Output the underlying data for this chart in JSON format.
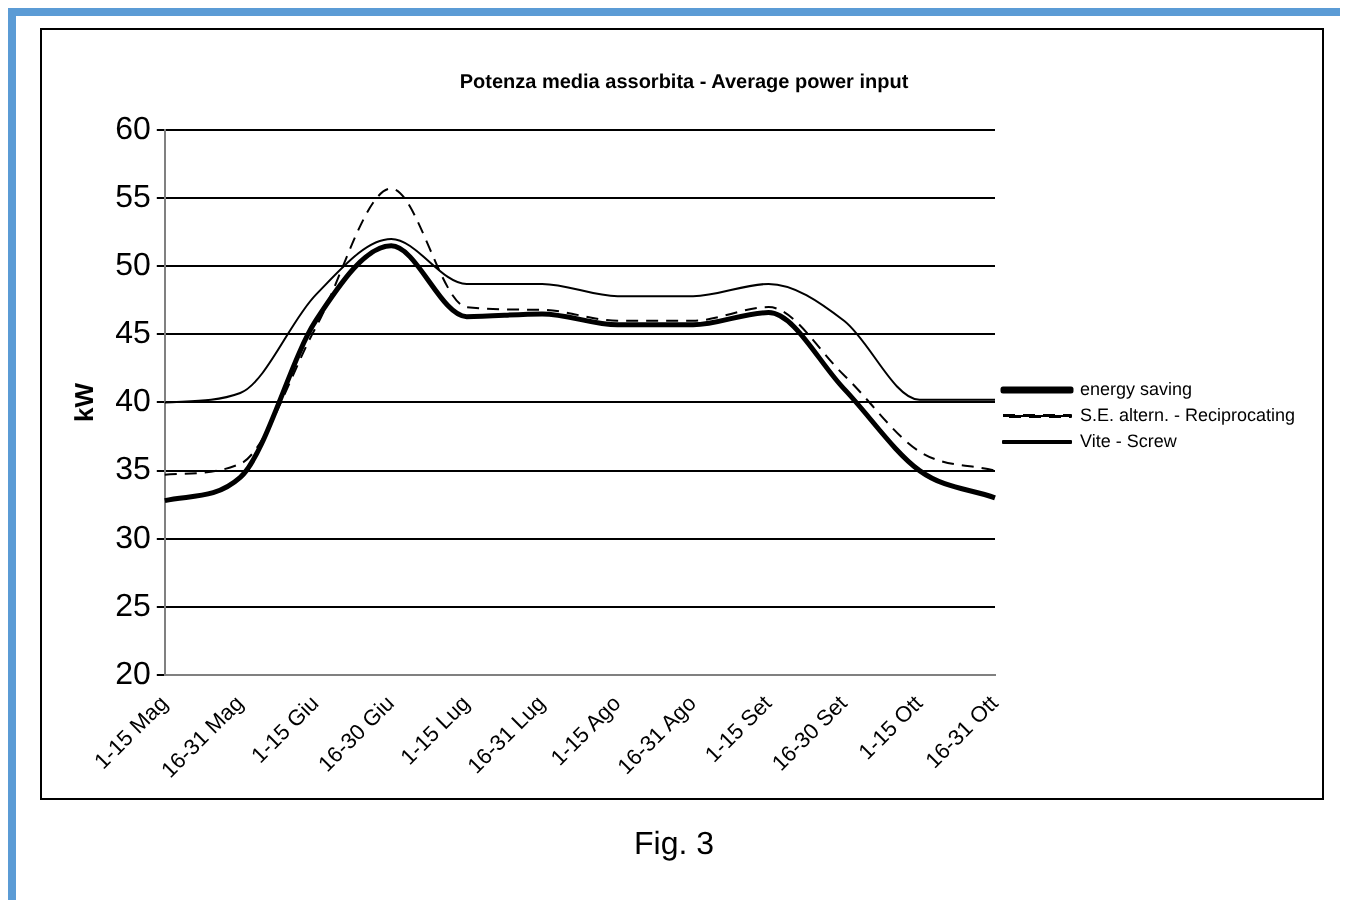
{
  "chart_data": {
    "type": "line",
    "title": "Potenza media assorbita - Average power input",
    "ylabel": "kW",
    "categories": [
      "1-15 Mag",
      "16-31 Mag",
      "1-15 Giu",
      "16-30 Giu",
      "1-15 Lug",
      "16-31 Lug",
      "1-15 Ago",
      "16-31 Ago",
      "1-15 Set",
      "16-30 Set",
      "1-15 Ott",
      "16-31 Ott"
    ],
    "series": [
      {
        "name": "energy saving",
        "color": "#000000",
        "line_style": "solid",
        "values": [
          32.8,
          34.5,
          46,
          51.5,
          46.3,
          46.5,
          45.7,
          45.7,
          46.6,
          41,
          35,
          33
        ]
      },
      {
        "name": "S.E. altern. - Reciprocating",
        "color": "#000000",
        "line_style": "dashed",
        "values": [
          34.7,
          35.5,
          45.5,
          55.7,
          47,
          46.8,
          46,
          46,
          47,
          42,
          36.4,
          35
        ]
      },
      {
        "name": "Vite - Screw",
        "color": "#000000",
        "line_style": "solid",
        "values": [
          40,
          40.7,
          47.9,
          52,
          48.7,
          48.7,
          47.8,
          47.8,
          48.7,
          46,
          40.2,
          40.2
        ]
      }
    ],
    "ylim": [
      20,
      60
    ],
    "yticks": [
      20,
      25,
      30,
      35,
      40,
      45,
      50,
      55,
      60
    ],
    "grid": "y",
    "legend": "right",
    "marker": "none",
    "annotations": [
      "Fig. 3"
    ]
  }
}
